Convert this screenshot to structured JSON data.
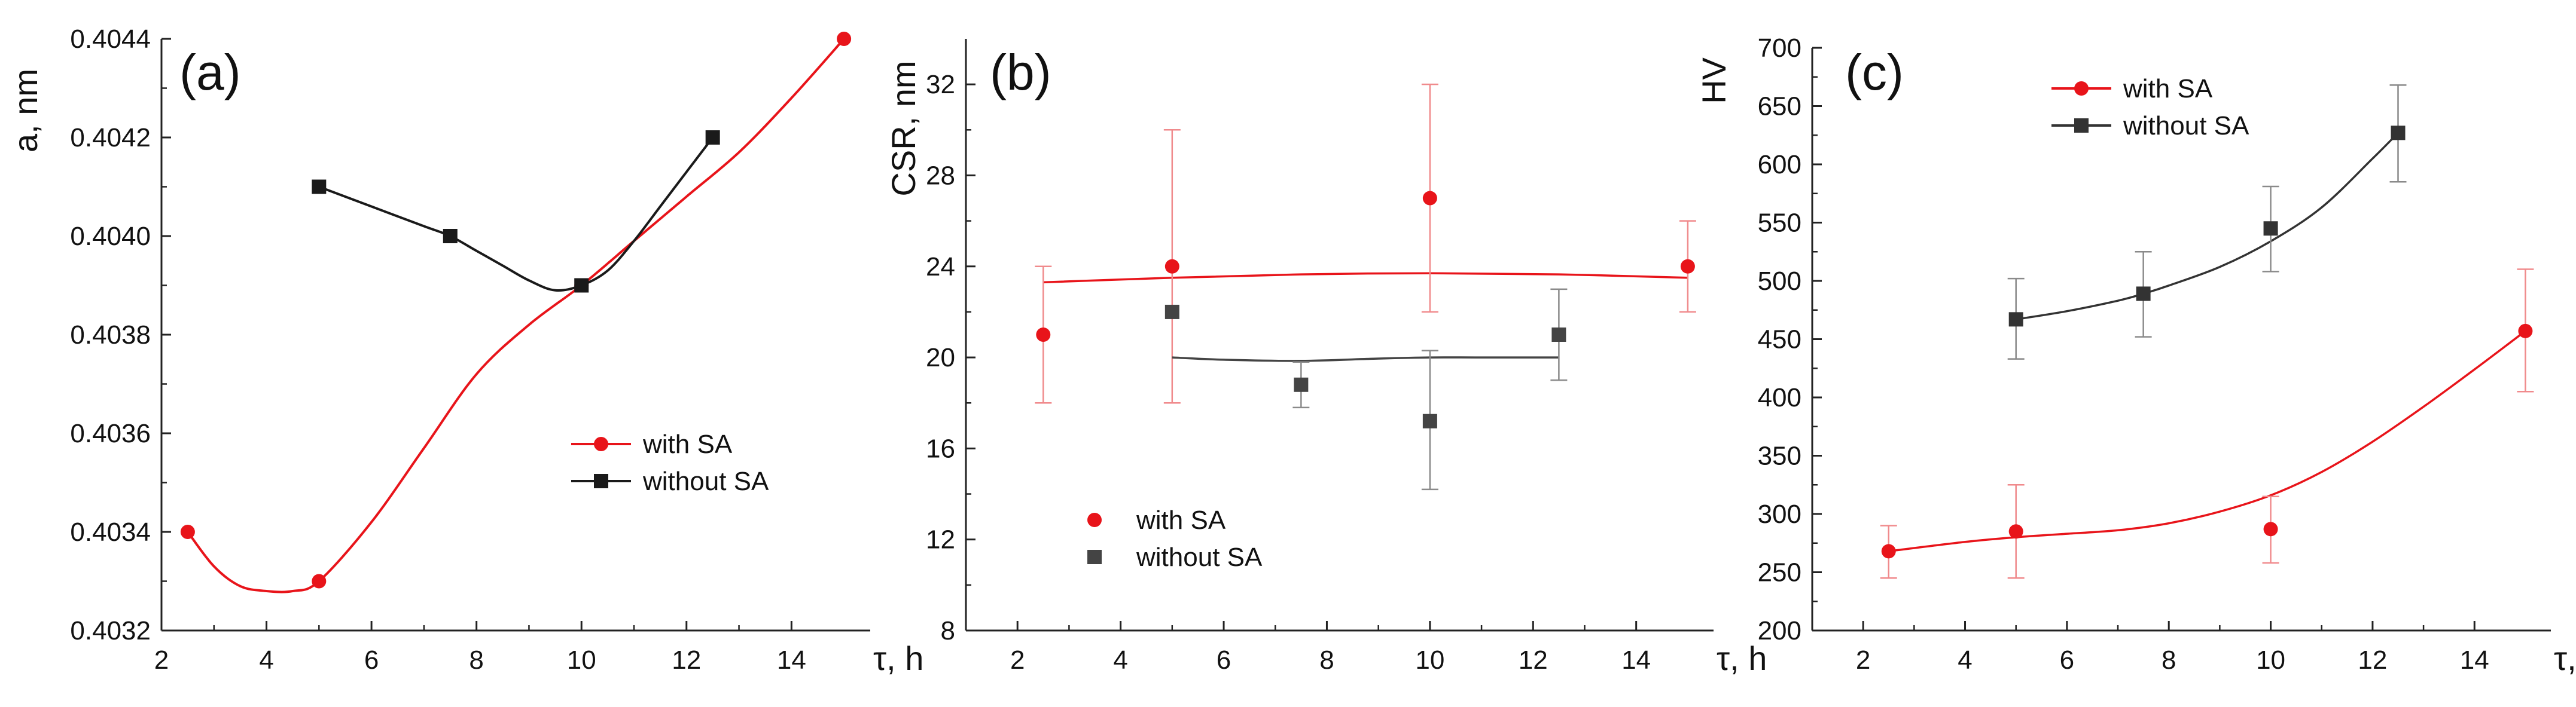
{
  "colors": {
    "with_sa": "#e8141a",
    "without_sa": "#1a1a1a",
    "axis": "#222222"
  },
  "chart_data": [
    {
      "id": "a",
      "type": "line",
      "panel_label": "(a)",
      "xlabel": "τ, h",
      "ylabel": "a, nm",
      "xlim": [
        2,
        15.5
      ],
      "ylim": [
        0.4032,
        0.4044
      ],
      "xticks": [
        "2",
        "4",
        "6",
        "8",
        "10",
        "12",
        "14"
      ],
      "yticks": [
        "0.4032",
        "0.4034",
        "0.4036",
        "0.4038",
        "0.4040",
        "0.4042",
        "0.4044"
      ],
      "legend_position": "middle-right",
      "series": [
        {
          "name": "with SA",
          "marker": "circle",
          "color": "#e8141a",
          "x": [
            2.5,
            5,
            10,
            15
          ],
          "y": [
            0.4034,
            0.4033,
            0.4039,
            0.4044
          ],
          "curve": [
            [
              2.5,
              0.4034
            ],
            [
              3,
              0.40333
            ],
            [
              3.5,
              0.40329
            ],
            [
              4,
              0.40328
            ],
            [
              4.5,
              0.40328
            ],
            [
              5,
              0.4033
            ],
            [
              6,
              0.40342
            ],
            [
              7,
              0.40357
            ],
            [
              8,
              0.40372
            ],
            [
              9,
              0.40382
            ],
            [
              10,
              0.4039
            ],
            [
              11,
              0.40399
            ],
            [
              12,
              0.40408
            ],
            [
              13,
              0.40417
            ],
            [
              14,
              0.40428
            ],
            [
              15,
              0.4044
            ]
          ]
        },
        {
          "name": "without SA",
          "marker": "square",
          "color": "#1a1a1a",
          "x": [
            5,
            7.5,
            10,
            12.5
          ],
          "y": [
            0.4041,
            0.404,
            0.4039,
            0.4042
          ],
          "curve": [
            [
              5,
              0.4041
            ],
            [
              6,
              0.40406
            ],
            [
              7,
              0.40402
            ],
            [
              7.5,
              0.404
            ],
            [
              8,
              0.40397
            ],
            [
              8.5,
              0.40394
            ],
            [
              9,
              0.40391
            ],
            [
              9.5,
              0.40389
            ],
            [
              10,
              0.4039
            ],
            [
              10.5,
              0.40393
            ],
            [
              11,
              0.40399
            ],
            [
              11.5,
              0.40406
            ],
            [
              12,
              0.40413
            ],
            [
              12.5,
              0.4042
            ]
          ]
        }
      ]
    },
    {
      "id": "b",
      "type": "scatter",
      "panel_label": "(b)",
      "xlabel": "τ, h",
      "ylabel": "CSR, nm",
      "xlim": [
        1,
        15.5
      ],
      "ylim": [
        8,
        34
      ],
      "xticks": [
        "2",
        "4",
        "6",
        "8",
        "10",
        "12",
        "14"
      ],
      "yticks": [
        "8",
        "12",
        "16",
        "20",
        "24",
        "28",
        "32"
      ],
      "legend_position": "bottom-left",
      "series": [
        {
          "name": "with SA",
          "marker": "circle",
          "color": "#e8141a",
          "x": [
            2.5,
            5,
            10,
            15
          ],
          "y": [
            21,
            24,
            27,
            24
          ],
          "err_low": [
            18,
            18,
            22,
            22
          ],
          "err_high": [
            24,
            30,
            32,
            26
          ],
          "fit": [
            [
              2.5,
              23.3
            ],
            [
              5,
              23.5
            ],
            [
              7.5,
              23.65
            ],
            [
              10,
              23.7
            ],
            [
              12.5,
              23.65
            ],
            [
              15,
              23.5
            ]
          ]
        },
        {
          "name": "without SA",
          "marker": "square",
          "color": "#444444",
          "x": [
            5,
            7.5,
            10,
            12.5
          ],
          "y": [
            22,
            18.8,
            17.2,
            21
          ],
          "err_low": [
            22,
            17.8,
            14.2,
            19
          ],
          "err_high": [
            22,
            19.8,
            20.3,
            23
          ],
          "fit": [
            [
              5,
              20
            ],
            [
              6,
              19.9
            ],
            [
              7.5,
              19.85
            ],
            [
              9,
              19.95
            ],
            [
              10,
              20
            ],
            [
              11,
              20
            ],
            [
              12.5,
              20
            ]
          ]
        }
      ]
    },
    {
      "id": "c",
      "type": "scatter",
      "panel_label": "(c)",
      "xlabel": "τ, h",
      "ylabel": "HV",
      "xlim": [
        1,
        15.5
      ],
      "ylim": [
        200,
        700
      ],
      "xticks": [
        "2",
        "4",
        "6",
        "8",
        "10",
        "12",
        "14"
      ],
      "yticks": [
        "200",
        "250",
        "300",
        "350",
        "400",
        "450",
        "500",
        "550",
        "600",
        "650",
        "700"
      ],
      "legend_position": "top-left",
      "series": [
        {
          "name": "with SA",
          "marker": "circle",
          "color": "#e8141a",
          "x": [
            2.5,
            5,
            10,
            15
          ],
          "y": [
            268,
            285,
            287,
            457
          ],
          "err_low": [
            245,
            245,
            258,
            405
          ],
          "err_high": [
            290,
            325,
            315,
            510
          ],
          "fit": [
            [
              2.5,
              268
            ],
            [
              4,
              276
            ],
            [
              5,
              280
            ],
            [
              6,
              283
            ],
            [
              7,
              286
            ],
            [
              8,
              292
            ],
            [
              9,
              302
            ],
            [
              10,
              316
            ],
            [
              11,
              336
            ],
            [
              12,
              362
            ],
            [
              13,
              392
            ],
            [
              14,
              424
            ],
            [
              15,
              457
            ]
          ]
        },
        {
          "name": "without SA",
          "marker": "square",
          "color": "#333333",
          "x": [
            5,
            7.5,
            10,
            12.5
          ],
          "y": [
            467,
            489,
            545,
            627
          ],
          "err_low": [
            433,
            452,
            508,
            585
          ],
          "err_high": [
            502,
            525,
            581,
            668
          ],
          "fit": [
            [
              5,
              467
            ],
            [
              6,
              474
            ],
            [
              7,
              483
            ],
            [
              7.5,
              489
            ],
            [
              8,
              496
            ],
            [
              9,
              512
            ],
            [
              10,
              534
            ],
            [
              11,
              563
            ],
            [
              12,
              605
            ],
            [
              12.5,
              627
            ]
          ]
        }
      ]
    }
  ]
}
